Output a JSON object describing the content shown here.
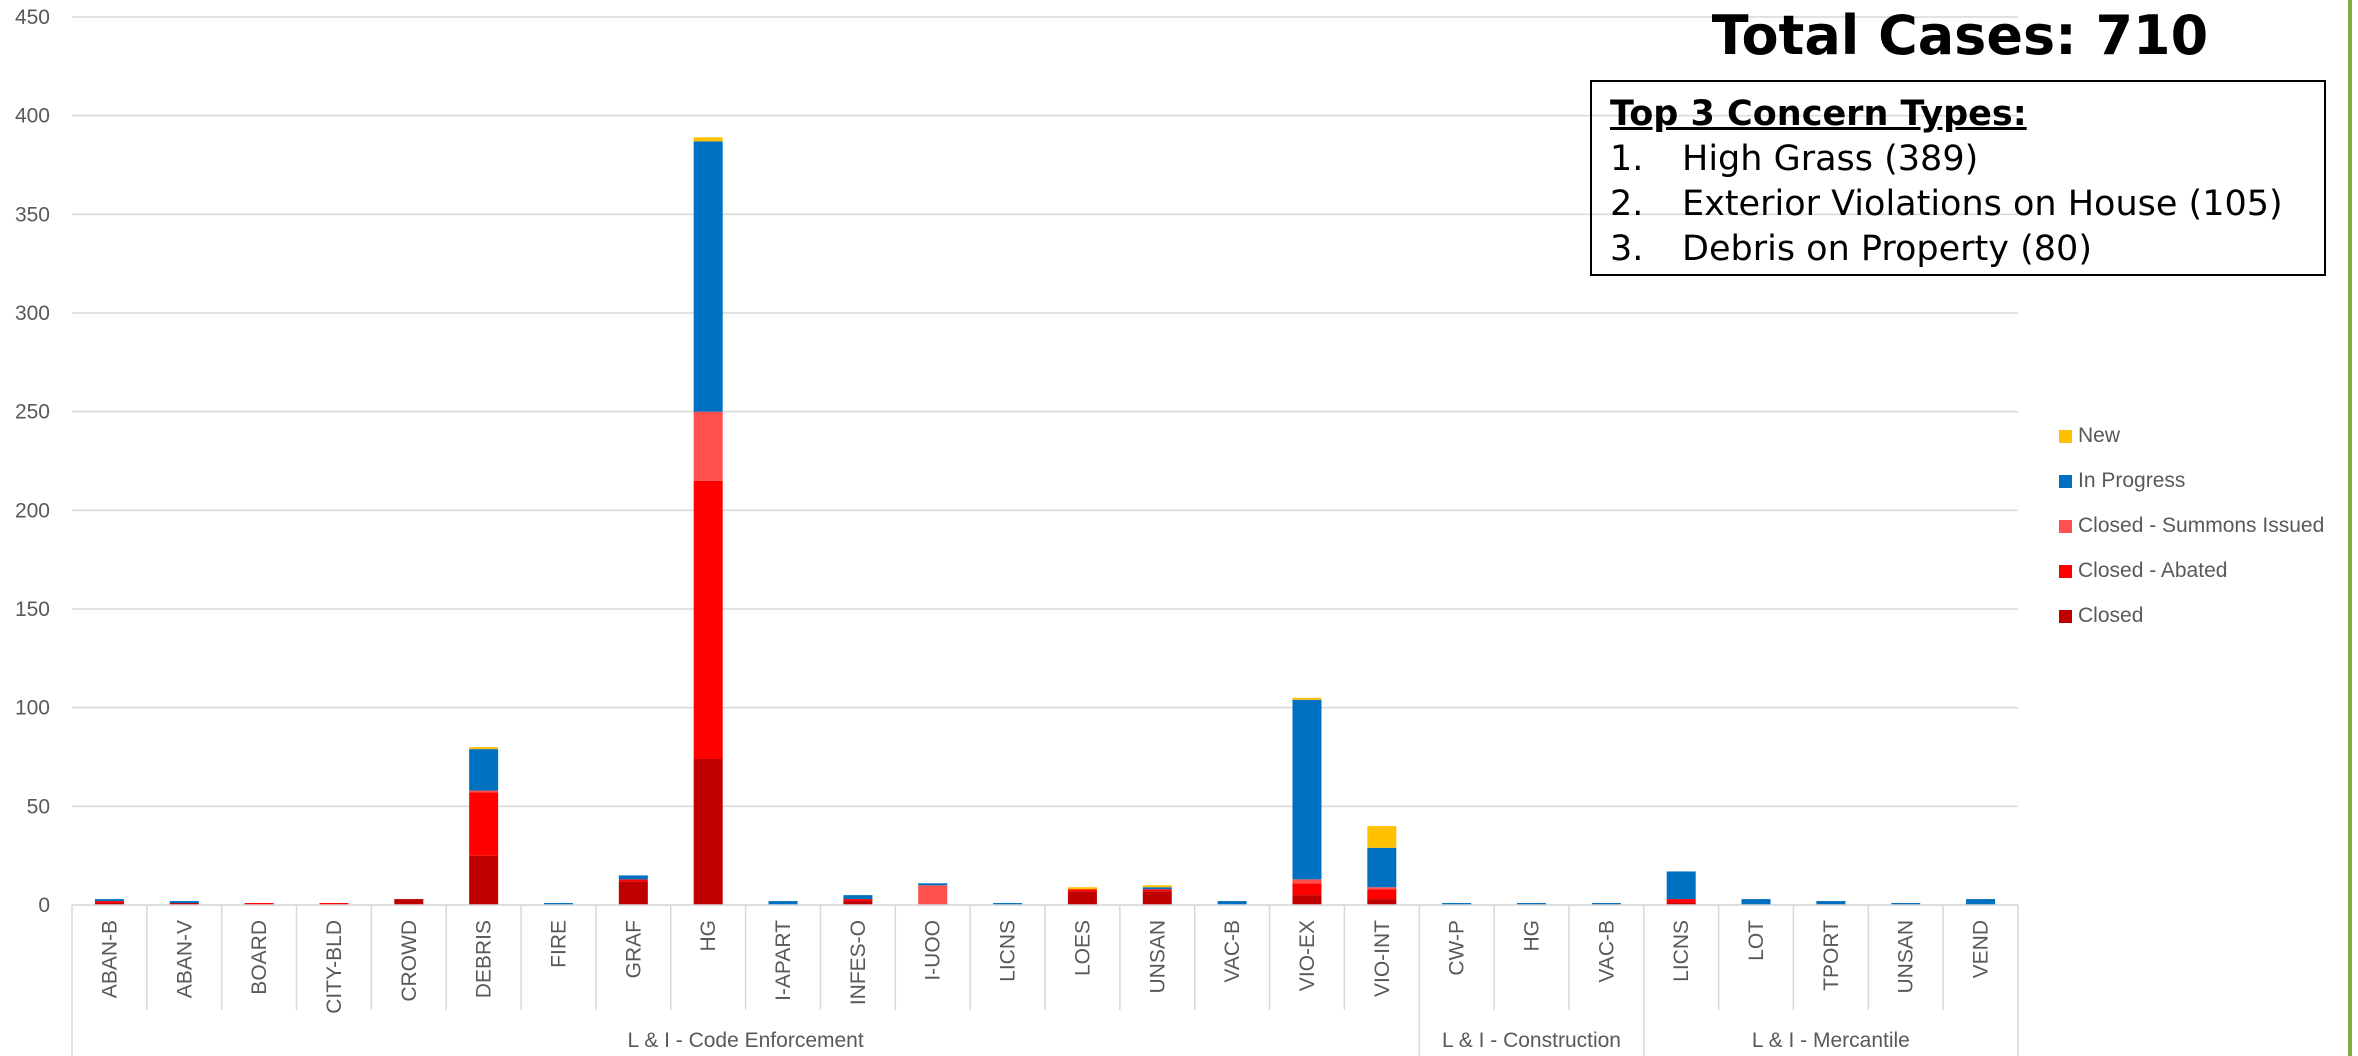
{
  "annotation": {
    "total_cases": "Total Cases: 710",
    "top3_title": "Top 3 Concern Types:",
    "top3_items": [
      {
        "num": "1.",
        "text": "High Grass (389)"
      },
      {
        "num": "2.",
        "text": "Exterior Violations on House (105)"
      },
      {
        "num": "3.",
        "text": "Debris on Property (80)"
      }
    ]
  },
  "colors": {
    "Closed": "#c00000",
    "Closed - Abated": "#ff0000",
    "Closed - Summons Issued": "#ff5050",
    "In Progress": "#0070c0",
    "New": "#ffc000",
    "grid": "#d9d9d9",
    "accent_border": "#7fae3a"
  },
  "chart_data": {
    "type": "bar",
    "stacked": true,
    "title": "",
    "xlabel": "",
    "ylabel": "",
    "ylim": [
      0,
      450
    ],
    "yticks": [
      0,
      50,
      100,
      150,
      200,
      250,
      300,
      350,
      400,
      450
    ],
    "grid": true,
    "legend_placement": "right",
    "categories": [
      "ABAN-B",
      "ABAN-V",
      "BOARD",
      "CITY-BLD",
      "CROWD",
      "DEBRIS",
      "FIRE",
      "GRAF",
      "HG",
      "I-APART",
      "INFES-O",
      "I-UOO",
      "LICNS",
      "LOES",
      "UNSAN",
      "VAC-B",
      "VIO-EX",
      "VIO-INT",
      "CW-P",
      "HG",
      "VAC-B",
      "LICNS",
      "LOT",
      "TPORT",
      "UNSAN",
      "VEND"
    ],
    "groups": [
      {
        "label": "L & I - Code Enforcement",
        "count": 18
      },
      {
        "label": "L & I - Construction",
        "count": 3
      },
      {
        "label": "L & I - Mercantile",
        "count": 5
      }
    ],
    "series": [
      {
        "name": "Closed",
        "values": [
          1,
          1,
          0,
          0,
          3,
          25,
          0,
          12,
          74,
          0,
          2,
          0,
          0,
          7,
          7,
          0,
          5,
          3,
          0,
          0,
          0,
          1,
          0,
          0,
          0,
          0
        ]
      },
      {
        "name": "Closed - Abated",
        "values": [
          1,
          0,
          1,
          1,
          0,
          32,
          0,
          1,
          141,
          0,
          1,
          0,
          0,
          1,
          1,
          0,
          6,
          5,
          0,
          0,
          0,
          2,
          0,
          0,
          0,
          0
        ]
      },
      {
        "name": "Closed - Summons Issued",
        "values": [
          0,
          0,
          0,
          0,
          0,
          1,
          0,
          0,
          35,
          0,
          0,
          10,
          0,
          0,
          0,
          0,
          2,
          1,
          0,
          0,
          0,
          0,
          0,
          0,
          0,
          0
        ]
      },
      {
        "name": "In Progress",
        "values": [
          1,
          1,
          0,
          0,
          0,
          21,
          1,
          2,
          137,
          2,
          2,
          1,
          1,
          0,
          1,
          2,
          91,
          20,
          1,
          1,
          1,
          14,
          3,
          2,
          1,
          3
        ]
      },
      {
        "name": "New",
        "values": [
          0,
          0,
          0,
          0,
          0,
          1,
          0,
          0,
          2,
          0,
          0,
          0,
          0,
          1,
          1,
          0,
          1,
          11,
          0,
          0,
          0,
          0,
          0,
          0,
          0,
          0
        ]
      }
    ],
    "legend_order": [
      "New",
      "In Progress",
      "Closed - Summons Issued",
      "Closed - Abated",
      "Closed"
    ]
  }
}
